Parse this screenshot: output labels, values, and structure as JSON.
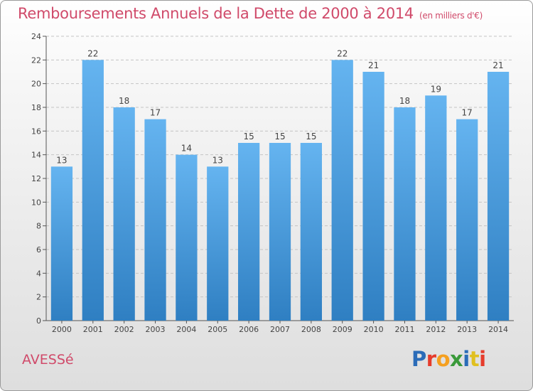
{
  "header": {
    "title": "Remboursements Annuels de la Dette de 2000 à 2014",
    "subtitle": "(en milliers d'€)"
  },
  "footer": {
    "place": "AVESSé",
    "brand": "Proxiti"
  },
  "colors": {
    "title": "#d04a6a",
    "bar_top": "#65b4f0",
    "bar_bottom": "#2f7fc2",
    "grid": "#c4c4c4",
    "logo_letters": [
      "#2b6cb8",
      "#e63c2c",
      "#f5a020",
      "#3a9a3a",
      "#2b6cb8",
      "#e0c020",
      "#e63c2c"
    ]
  },
  "chart_data": {
    "type": "bar",
    "title": "Remboursements Annuels de la Dette de 2000 à 2014",
    "subtitle": "(en milliers d'€)",
    "categories": [
      "2000",
      "2001",
      "2002",
      "2003",
      "2004",
      "2005",
      "2006",
      "2007",
      "2008",
      "2009",
      "2010",
      "2011",
      "2012",
      "2013",
      "2014"
    ],
    "values": [
      13,
      22,
      18,
      17,
      14,
      13,
      15,
      15,
      15,
      22,
      21,
      18,
      19,
      17,
      21
    ],
    "ylim": [
      0,
      24
    ],
    "yticks": [
      0,
      2,
      4,
      6,
      8,
      10,
      12,
      14,
      16,
      18,
      20,
      22,
      24
    ],
    "grid": true,
    "xlabel": "",
    "ylabel": ""
  }
}
